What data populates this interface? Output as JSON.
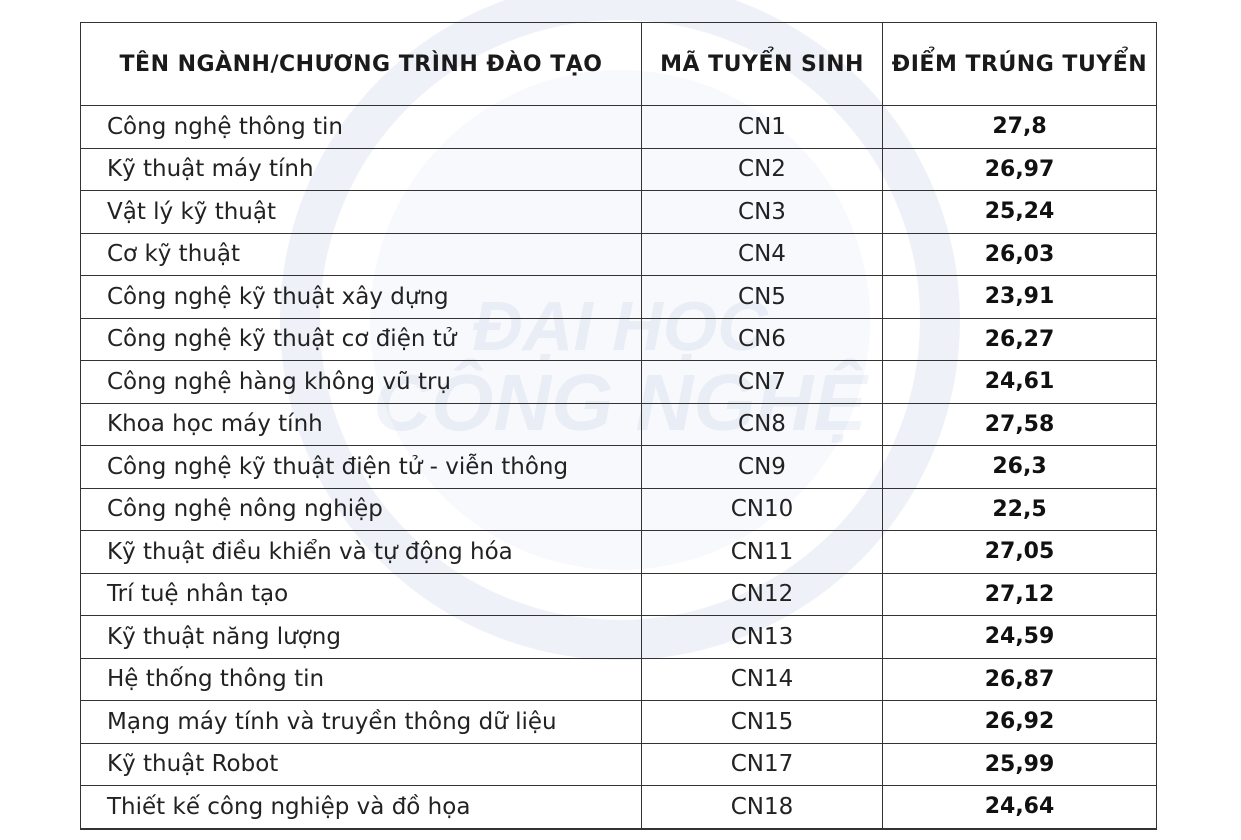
{
  "table": {
    "headers": [
      "TÊN NGÀNH/CHƯƠNG TRÌNH ĐÀO TẠO",
      "MÃ TUYỂN SINH",
      "ĐIỂM TRÚNG TUYỂN"
    ],
    "rows": [
      {
        "name": "Công nghệ thông tin",
        "code": "CN1",
        "score": "27,8"
      },
      {
        "name": "Kỹ thuật máy tính",
        "code": "CN2",
        "score": "26,97"
      },
      {
        "name": "Vật lý kỹ thuật",
        "code": "CN3",
        "score": "25,24"
      },
      {
        "name": "Cơ kỹ thuật",
        "code": "CN4",
        "score": "26,03"
      },
      {
        "name": "Công nghệ kỹ thuật xây dựng",
        "code": "CN5",
        "score": "23,91"
      },
      {
        "name": "Công nghệ kỹ thuật cơ điện tử",
        "code": "CN6",
        "score": "26,27"
      },
      {
        "name": "Công nghệ hàng không vũ trụ",
        "code": "CN7",
        "score": "24,61"
      },
      {
        "name": "Khoa học máy tính",
        "code": "CN8",
        "score": "27,58"
      },
      {
        "name": "Công nghệ kỹ thuật điện tử - viễn thông",
        "code": "CN9",
        "score": "26,3"
      },
      {
        "name": "Công nghệ nông nghiệp",
        "code": "CN10",
        "score": "22,5"
      },
      {
        "name": "Kỹ thuật điều khiển và tự động hóa",
        "code": "CN11",
        "score": "27,05"
      },
      {
        "name": "Trí tuệ nhân tạo",
        "code": "CN12",
        "score": "27,12"
      },
      {
        "name": "Kỹ thuật năng lượng",
        "code": "CN13",
        "score": "24,59"
      },
      {
        "name": "Hệ thống thông tin",
        "code": "CN14",
        "score": "26,87"
      },
      {
        "name": "Mạng máy tính và truyền thông dữ liệu",
        "code": "CN15",
        "score": "26,92"
      },
      {
        "name": "Kỹ thuật Robot",
        "code": "CN17",
        "score": "25,99"
      },
      {
        "name": "Thiết kế công nghiệp và đồ họa",
        "code": "CN18",
        "score": "24,64"
      }
    ]
  },
  "watermark": {
    "text": "ĐẠI HỌC CÔNG NGHỆ",
    "color": "#2a4fa0"
  }
}
